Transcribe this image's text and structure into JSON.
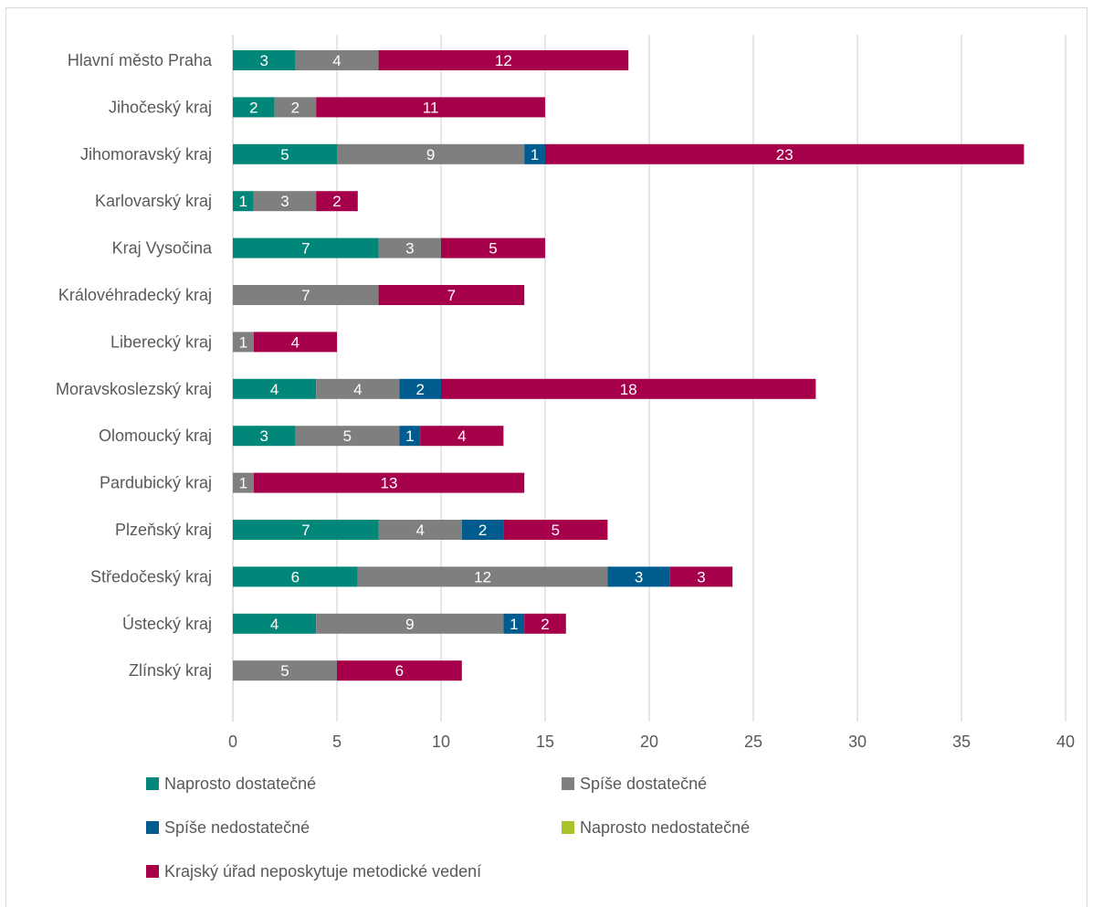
{
  "chart_data": {
    "type": "bar",
    "orientation": "horizontal",
    "stacked": true,
    "title": "",
    "xlabel": "",
    "ylabel": "",
    "xlim": [
      0,
      40
    ],
    "x_ticks": [
      0,
      5,
      10,
      15,
      20,
      25,
      30,
      35,
      40
    ],
    "grid": "vertical",
    "legend_position": "bottom",
    "categories": [
      "Hlavní město Praha",
      "Jihočeský kraj",
      "Jihomoravský kraj",
      "Karlovarský kraj",
      "Kraj Vysočina",
      "Královéhradecký kraj",
      "Liberecký kraj",
      "Moravskoslezský kraj",
      "Olomoucký kraj",
      "Pardubický kraj",
      "Plzeňský kraj",
      "Středočeský kraj",
      "Ústecký kraj",
      "Zlínský kraj"
    ],
    "series": [
      {
        "name": "Naprosto dostatečné",
        "color": "#00877a",
        "values": [
          3,
          2,
          5,
          1,
          7,
          0,
          0,
          4,
          3,
          0,
          7,
          6,
          4,
          0
        ]
      },
      {
        "name": "Spíše dostatečné",
        "color": "#7f7f7f",
        "values": [
          4,
          2,
          9,
          3,
          3,
          7,
          1,
          4,
          5,
          1,
          4,
          12,
          9,
          5
        ]
      },
      {
        "name": "Spíše nedostatečné",
        "color": "#005c8e",
        "values": [
          0,
          0,
          1,
          0,
          0,
          0,
          0,
          2,
          1,
          0,
          2,
          3,
          1,
          0
        ]
      },
      {
        "name": "Naprosto nedostatečné",
        "color": "#a9c42a",
        "values": [
          0,
          0,
          0,
          0,
          0,
          0,
          0,
          0,
          0,
          0,
          0,
          0,
          0,
          0
        ]
      },
      {
        "name": "Krajský úřad neposkytuje metodické vedení",
        "color": "#a6004a",
        "values": [
          12,
          11,
          23,
          2,
          5,
          7,
          4,
          18,
          4,
          13,
          5,
          3,
          2,
          6
        ]
      }
    ]
  }
}
